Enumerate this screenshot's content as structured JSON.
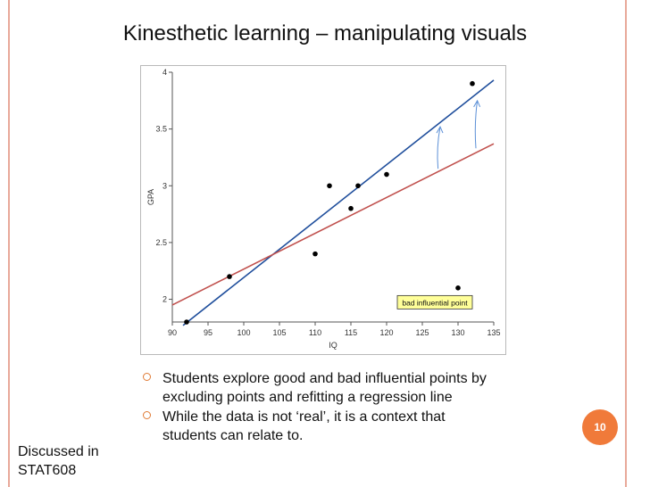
{
  "slide": {
    "title": "Kinesthetic learning – manipulating visuals",
    "page_number": "10",
    "side_note": "Discussed in STAT608",
    "bullets": [
      "Students explore good and bad influential points by excluding points and refitting a regression line",
      "While the data is not ‘real’, it is a context that students can relate to."
    ],
    "colors": {
      "frame": "#e8a99a",
      "bullet_marker": "#e07b35",
      "page_badge": "#f07a3a"
    }
  },
  "chart_data": {
    "type": "scatter",
    "title": "",
    "xlabel": "IQ",
    "ylabel": "GPA",
    "xlim": [
      90,
      135
    ],
    "ylim": [
      1.8,
      4
    ],
    "x_ticks": [
      90,
      95,
      100,
      105,
      110,
      115,
      120,
      125,
      130,
      135
    ],
    "y_ticks": [
      2,
      2.5,
      3,
      3.5,
      4
    ],
    "grid": false,
    "series": [
      {
        "color": "#000000",
        "points": [
          {
            "x": 92,
            "y": 1.8
          },
          {
            "x": 98,
            "y": 2.2
          },
          {
            "x": 110,
            "y": 2.4
          },
          {
            "x": 112,
            "y": 3.0
          },
          {
            "x": 115,
            "y": 2.8
          },
          {
            "x": 116,
            "y": 3.0
          },
          {
            "x": 120,
            "y": 3.1
          },
          {
            "x": 130,
            "y": 2.1
          },
          {
            "x": 132,
            "y": 3.9
          }
        ]
      }
    ],
    "lines": [
      {
        "color": "#1f4e9c",
        "points": [
          {
            "x": 91.5,
            "y": 1.77
          },
          {
            "x": 135,
            "y": 3.93
          }
        ]
      },
      {
        "color": "#c0504d",
        "points": [
          {
            "x": 90,
            "y": 1.95
          },
          {
            "x": 135,
            "y": 3.37
          }
        ]
      }
    ],
    "annotation": {
      "text": "bad influential point",
      "x": 126.5,
      "y": 1.97,
      "background": "#ffff99"
    },
    "arrows": [
      {
        "color": "#5b8fd6",
        "from": {
          "x": 127.2,
          "y": 3.15
        },
        "to": {
          "x": 127.5,
          "y": 3.52
        }
      },
      {
        "color": "#5b8fd6",
        "from": {
          "x": 132.5,
          "y": 3.33
        },
        "to": {
          "x": 132.7,
          "y": 3.75
        }
      }
    ]
  }
}
